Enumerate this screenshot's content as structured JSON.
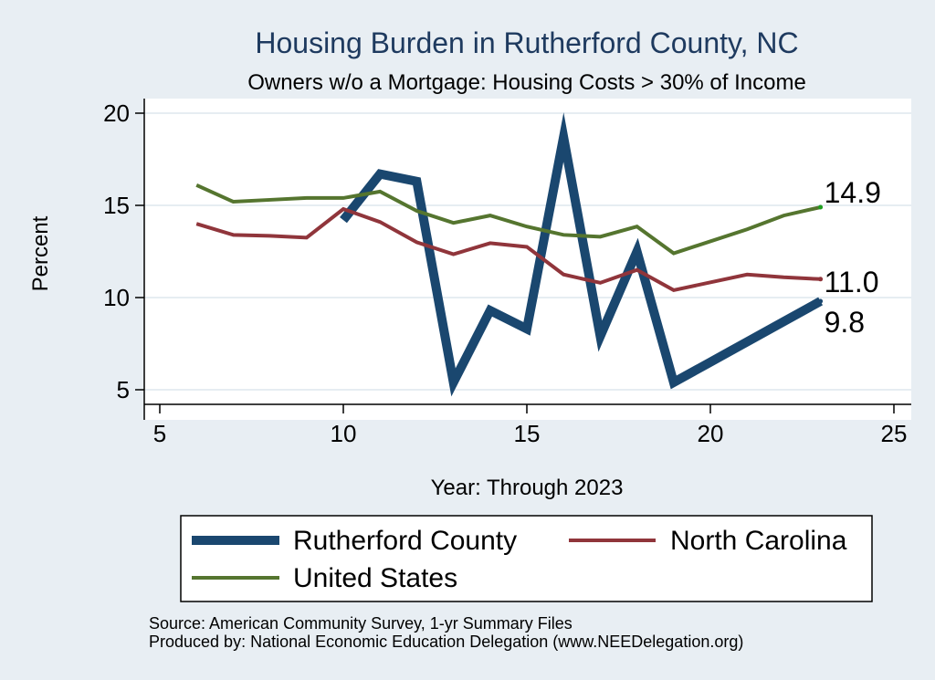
{
  "chart_data": {
    "type": "line",
    "title": "Housing Burden in Rutherford County, NC",
    "subtitle": "Owners w/o a Mortgage: Housing Costs > 30% of Income",
    "xlabel": "Year: Through 2023",
    "ylabel": "Percent",
    "xlim": [
      5,
      25
    ],
    "ylim": [
      4.5,
      20.8
    ],
    "xticks": [
      5,
      10,
      15,
      20,
      25
    ],
    "yticks": [
      5,
      10,
      15,
      20
    ],
    "grid": true,
    "series": [
      {
        "name": "Rutherford County",
        "color": "#1a476f",
        "x": [
          10,
          11,
          12,
          13,
          14,
          15,
          16,
          17,
          18,
          19,
          20,
          21,
          22,
          23
        ],
        "y": [
          14.2,
          16.7,
          16.3,
          5.4,
          9.3,
          8.3,
          18.7,
          7.9,
          12.5,
          5.4,
          6.5,
          7.6,
          8.7,
          9.8
        ],
        "end_label": "9.8"
      },
      {
        "name": "North Carolina",
        "color": "#90353b",
        "x": [
          6,
          7,
          8,
          9,
          10,
          11,
          12,
          13,
          14,
          15,
          16,
          17,
          18,
          19,
          21,
          22,
          23
        ],
        "y": [
          14.0,
          13.4,
          13.35,
          13.25,
          14.8,
          14.1,
          13.0,
          12.35,
          12.95,
          12.75,
          11.25,
          10.8,
          11.5,
          10.4,
          11.25,
          11.1,
          11.0
        ],
        "end_label": "11.0"
      },
      {
        "name": "United States",
        "color": "#55752f",
        "x": [
          6,
          7,
          8,
          9,
          10,
          11,
          12,
          13,
          14,
          15,
          16,
          17,
          18,
          19,
          21,
          22,
          23
        ],
        "y": [
          16.1,
          15.2,
          15.3,
          15.4,
          15.4,
          15.75,
          14.7,
          14.05,
          14.45,
          13.85,
          13.4,
          13.3,
          13.85,
          12.4,
          13.7,
          14.45,
          14.9
        ],
        "end_label": "14.9"
      }
    ],
    "legend": {
      "placement": "bottom",
      "entries": [
        "Rutherford County",
        "North Carolina",
        "United States"
      ]
    },
    "notes": [
      "Source: American Community Survey, 1-yr Summary Files",
      "Produced by: National Economic Education Delegation (www.NEEDelegation.org)"
    ]
  }
}
